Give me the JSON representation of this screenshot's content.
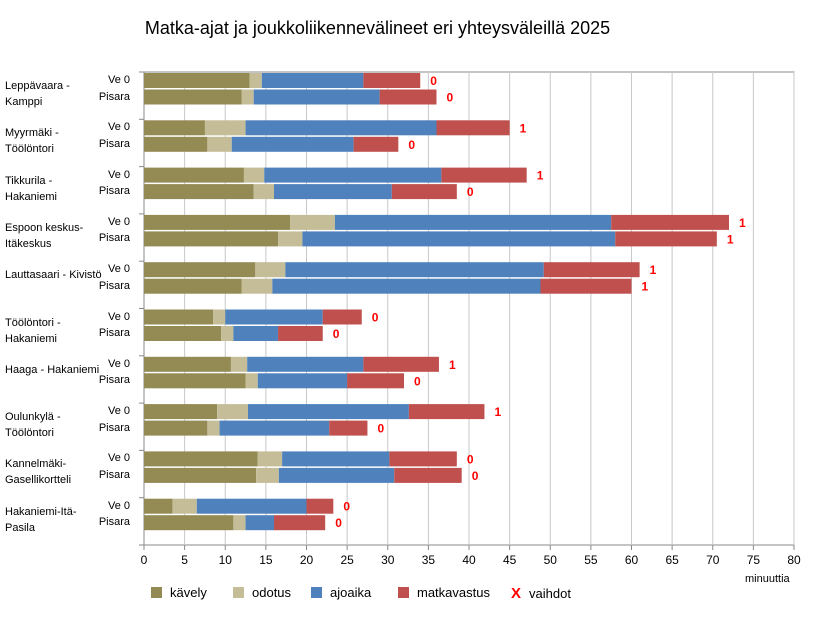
{
  "chart_data": {
    "type": "bar",
    "orientation": "horizontal",
    "stacked": true,
    "title": "Matka-ajat ja joukkoliikennevälineet eri yhteysväleillä 2025",
    "xlabel": "minuuttia",
    "xlim": [
      0,
      80
    ],
    "xticks": [
      0,
      5,
      10,
      15,
      20,
      25,
      30,
      35,
      40,
      45,
      50,
      55,
      60,
      65,
      70,
      75,
      80
    ],
    "grid": true,
    "legend_position": "bottom",
    "segments": [
      {
        "key": "kavely",
        "name": "kävely",
        "color": "#948A54"
      },
      {
        "key": "odotus",
        "name": "odotus",
        "color": "#C4BD97"
      },
      {
        "key": "ajoaika",
        "name": "ajoaika",
        "color": "#4F81BD"
      },
      {
        "key": "matkavastus",
        "name": "matkavastus",
        "color": "#C0504D"
      }
    ],
    "transfers_legend": {
      "marker": "X",
      "label": "vaihdot",
      "color": "#FF0000"
    },
    "groups": [
      {
        "label": "Leppävaara - Kamppi",
        "rows": [
          {
            "label": "Ve 0",
            "values": [
              13,
              1.5,
              12.5,
              7
            ],
            "transfers": "0"
          },
          {
            "label": "Pisara",
            "values": [
              12,
              1.5,
              15.5,
              7
            ],
            "transfers": "0"
          }
        ]
      },
      {
        "label": "Myyrmäki - Töölöntori",
        "rows": [
          {
            "label": "Ve 0",
            "values": [
              7.5,
              5,
              23.5,
              9
            ],
            "transfers": "1"
          },
          {
            "label": "Pisara",
            "values": [
              7.8,
              3,
              15,
              5.5
            ],
            "transfers": "0"
          }
        ]
      },
      {
        "label": "Tikkurila - Hakaniemi",
        "rows": [
          {
            "label": "Ve 0",
            "values": [
              12.3,
              2.5,
              21.8,
              10.5
            ],
            "transfers": "1"
          },
          {
            "label": "Pisara",
            "values": [
              13.5,
              2.5,
              14.5,
              8
            ],
            "transfers": "0"
          }
        ]
      },
      {
        "label": "Espoon keskus-Itäkeskus",
        "rows": [
          {
            "label": "Ve 0",
            "values": [
              18,
              5.5,
              34,
              14.5
            ],
            "transfers": "1"
          },
          {
            "label": "Pisara",
            "values": [
              16.5,
              3,
              38.5,
              12.5
            ],
            "transfers": "1"
          }
        ]
      },
      {
        "label": "Lauttasaari - Kivistö",
        "rows": [
          {
            "label": "Ve 0",
            "values": [
              13.7,
              3.7,
              31.8,
              11.8
            ],
            "transfers": "1"
          },
          {
            "label": "Pisara",
            "values": [
              12,
              3.8,
              33,
              11.2
            ],
            "transfers": "1"
          }
        ]
      },
      {
        "label": "Töölöntori - Hakaniemi",
        "rows": [
          {
            "label": "Ve 0",
            "values": [
              8.5,
              1.5,
              12,
              4.8
            ],
            "transfers": "0"
          },
          {
            "label": "Pisara",
            "values": [
              9.5,
              1.5,
              5.5,
              5.5
            ],
            "transfers": "0"
          }
        ]
      },
      {
        "label": "Haaga - Hakaniemi",
        "rows": [
          {
            "label": "Ve 0",
            "values": [
              10.7,
              2,
              14.3,
              9.3
            ],
            "transfers": "1"
          },
          {
            "label": "Pisara",
            "values": [
              12.5,
              1.5,
              11,
              7
            ],
            "transfers": "0"
          }
        ]
      },
      {
        "label": "Oulunkylä - Töölöntori",
        "rows": [
          {
            "label": "Ve 0",
            "values": [
              9,
              3.8,
              19.8,
              9.3
            ],
            "transfers": "1"
          },
          {
            "label": "Pisara",
            "values": [
              7.8,
              1.5,
              13.5,
              4.7
            ],
            "transfers": "0"
          }
        ]
      },
      {
        "label": "Kannelmäki-Gasellikortteli",
        "rows": [
          {
            "label": "Ve 0",
            "values": [
              14,
              3,
              13.2,
              8.3
            ],
            "transfers": "0"
          },
          {
            "label": "Pisara",
            "values": [
              13.8,
              2.8,
              14.2,
              8.3
            ],
            "transfers": "0"
          }
        ]
      },
      {
        "label": "Hakaniemi-Itä-Pasila",
        "rows": [
          {
            "label": "Ve 0",
            "values": [
              3.5,
              3,
              13.5,
              3.3
            ],
            "transfers": "0"
          },
          {
            "label": "Pisara",
            "values": [
              11,
              1.5,
              3.5,
              6.3
            ],
            "transfers": "0"
          }
        ]
      }
    ]
  }
}
